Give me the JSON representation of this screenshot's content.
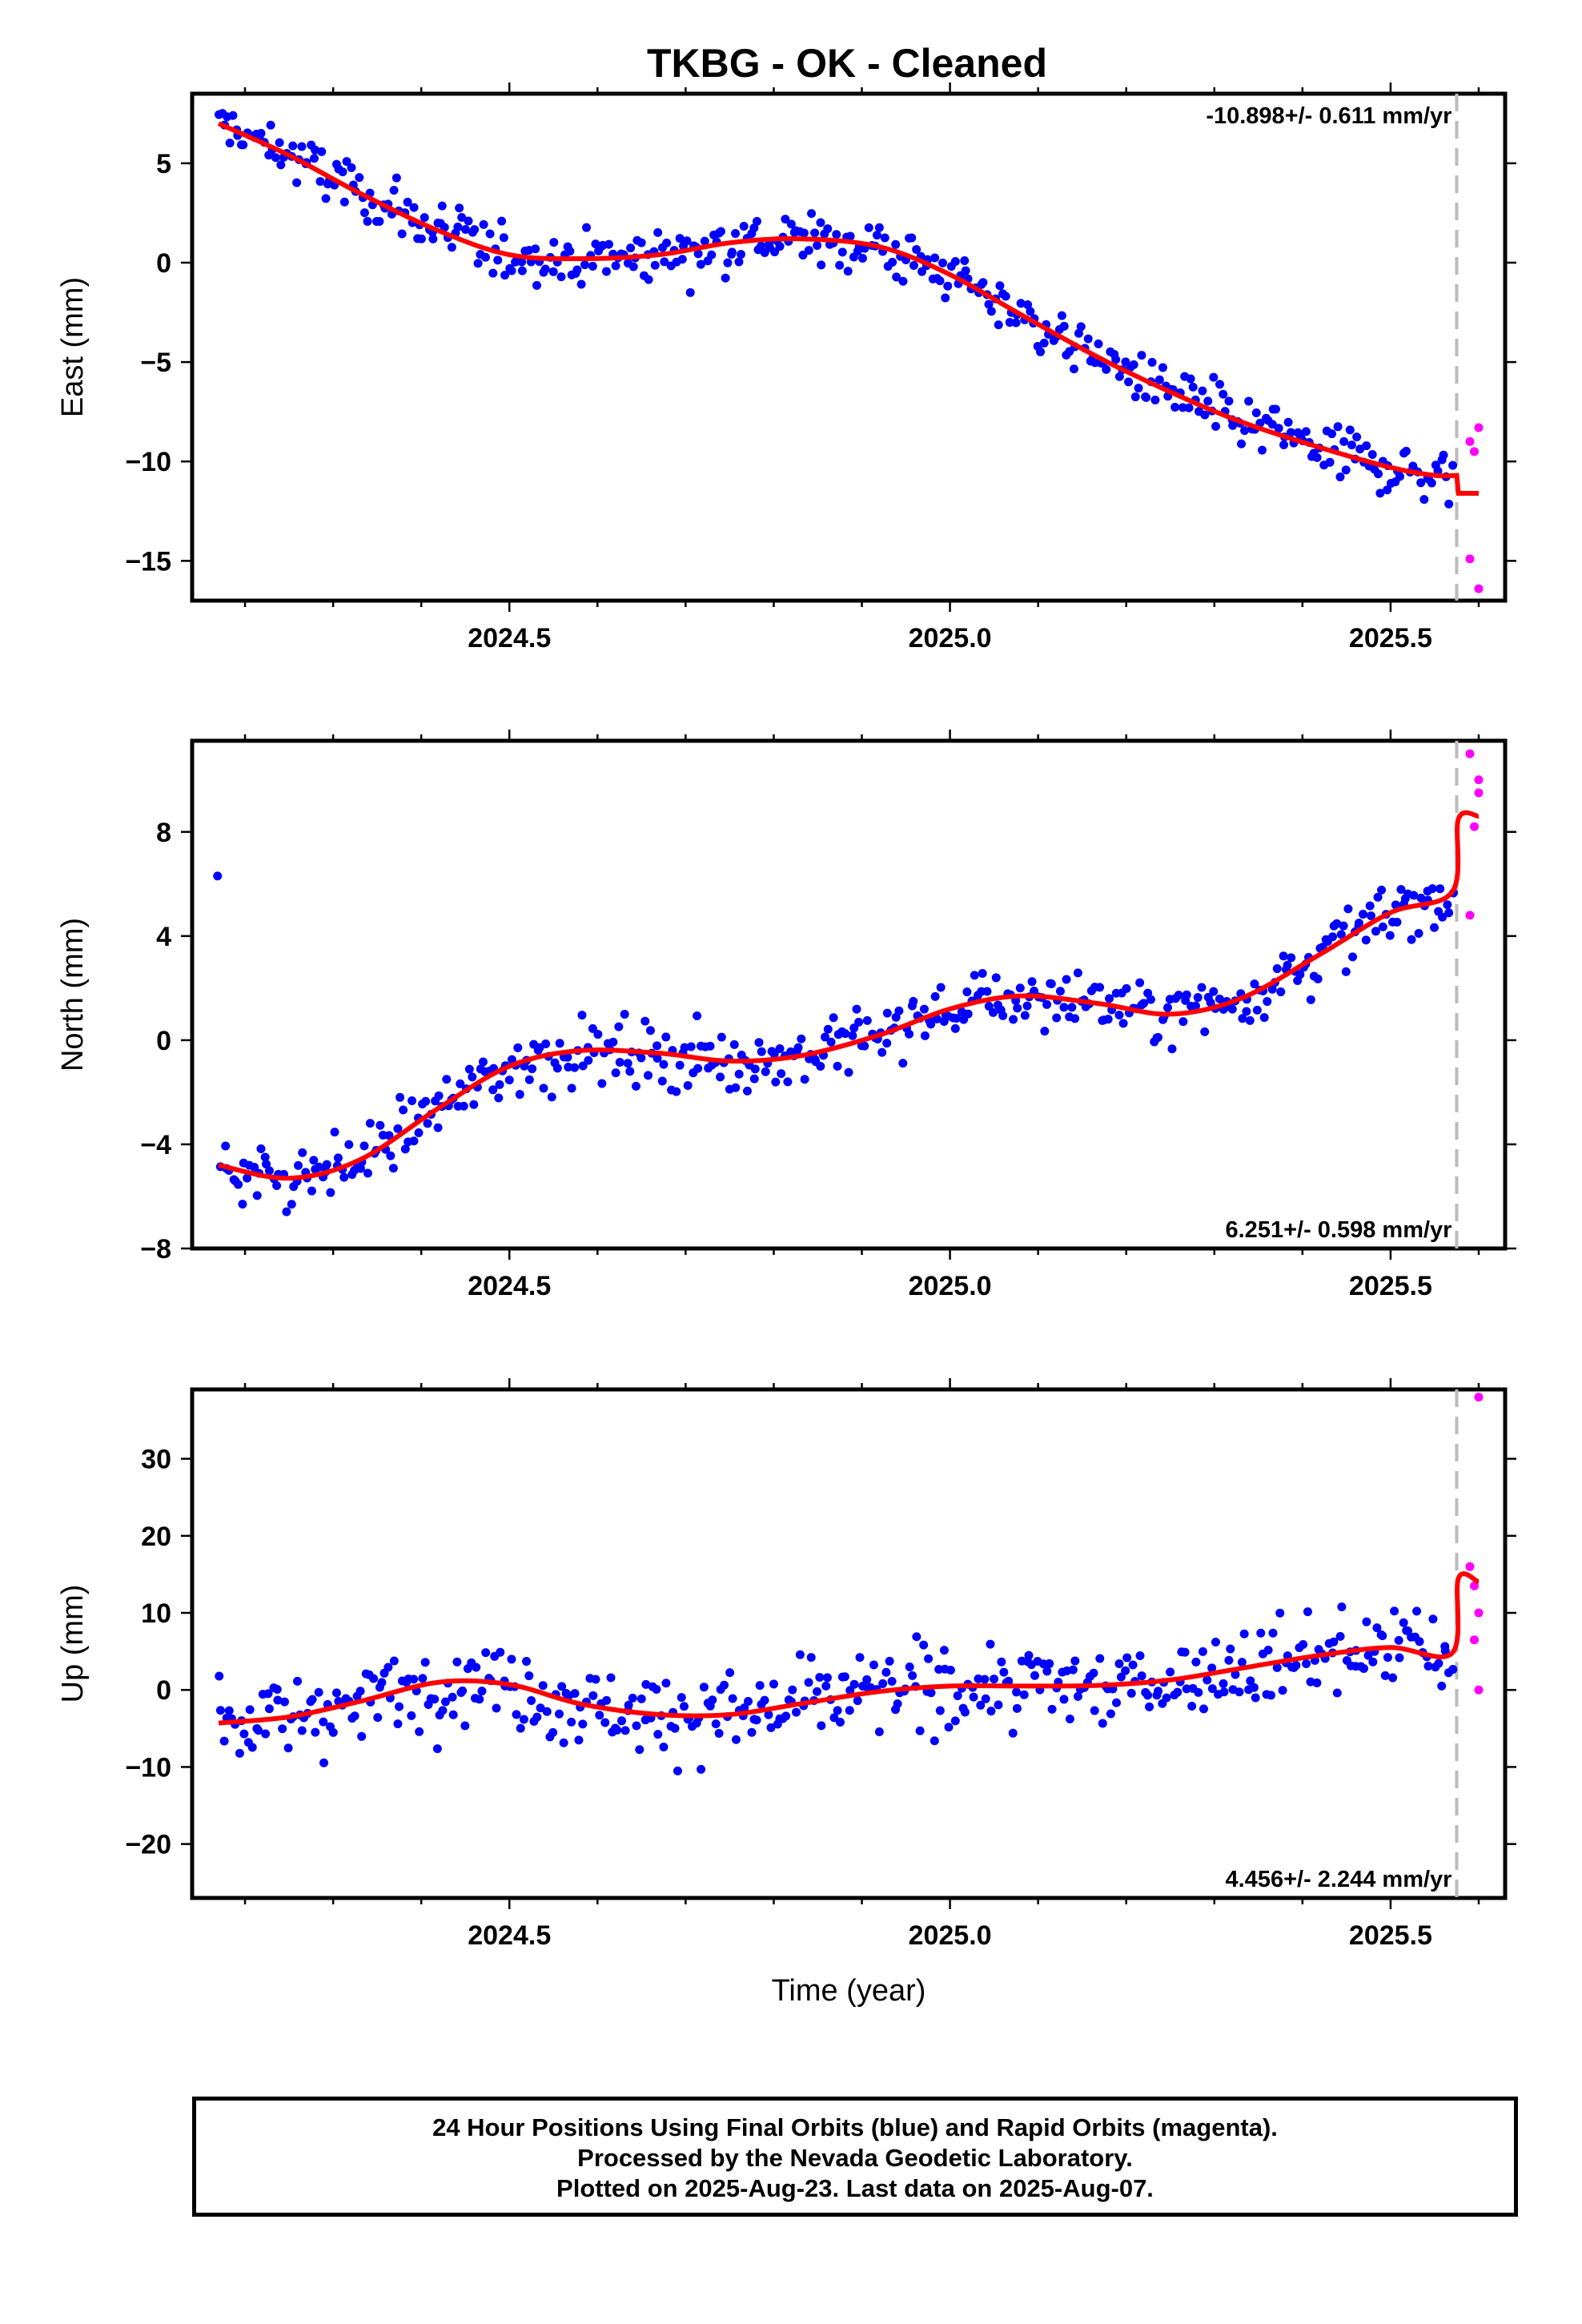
{
  "title": "TKBG  - OK - Cleaned",
  "colors": {
    "final_orbits": "#0000ff",
    "rapid_orbits": "#ff00ff",
    "model": "#ff0000",
    "marker_line": "#bbbbbb"
  },
  "footer": {
    "line1": "24 Hour Positions Using Final Orbits (blue) and Rapid Orbits (magenta).",
    "line2": "Processed by the Nevada Geodetic Laboratory.",
    "line3": "Plotted on 2025-Aug-23. Last data on 2025-Aug-07."
  },
  "chart_data": [
    {
      "type": "scatter",
      "title": "TKBG  - OK - Cleaned",
      "ylabel": "East (mm)",
      "xlabel": "",
      "xlim": [
        2024.14,
        2025.63
      ],
      "ylim": [
        -17,
        8.5
      ],
      "xticks": [
        2024.5,
        2025.0,
        2025.5
      ],
      "xtick_labels": [
        "2024.5",
        "2025.0",
        "2025.5"
      ],
      "yticks": [
        5,
        0,
        -5,
        -10,
        -15
      ],
      "ytick_labels": [
        "5",
        "0",
        "−5",
        "−10",
        "−15"
      ],
      "rate_label": "-10.898+/- 0.611 mm/yr",
      "rate_position": "top-right",
      "event_line_x": 2025.575,
      "model": {
        "x": [
          2024.17,
          2024.25,
          2024.33,
          2024.42,
          2024.5,
          2024.58,
          2024.67,
          2024.75,
          2024.83,
          2024.92,
          2025.0,
          2025.08,
          2025.17,
          2025.25,
          2025.33,
          2025.42,
          2025.5,
          2025.55,
          2025.575,
          2025.577,
          2025.6
        ],
        "y": [
          7.0,
          5.4,
          3.5,
          1.6,
          0.4,
          0.2,
          0.4,
          1.0,
          1.2,
          0.8,
          -0.6,
          -2.6,
          -4.8,
          -6.5,
          -8.0,
          -9.3,
          -10.3,
          -10.7,
          -10.7,
          -11.6,
          -11.6
        ]
      },
      "series": [
        {
          "name": "Final Orbits",
          "color": "#0000ff",
          "trend_points": [
            [
              2024.17,
              7.0
            ],
            [
              2024.25,
              5.4
            ],
            [
              2024.33,
              3.5
            ],
            [
              2024.42,
              1.6
            ],
            [
              2024.5,
              0.4
            ],
            [
              2024.58,
              0.2
            ],
            [
              2024.67,
              0.4
            ],
            [
              2024.75,
              1.0
            ],
            [
              2024.83,
              1.2
            ],
            [
              2024.92,
              0.8
            ],
            [
              2025.0,
              -0.6
            ],
            [
              2025.08,
              -2.6
            ],
            [
              2025.17,
              -4.8
            ],
            [
              2025.25,
              -6.5
            ],
            [
              2025.33,
              -8.0
            ],
            [
              2025.42,
              -9.3
            ],
            [
              2025.5,
              -10.3
            ],
            [
              2025.57,
              -10.8
            ]
          ],
          "scatter_sd": 1.0
        },
        {
          "name": "Rapid Orbits",
          "color": "#ff00ff",
          "x": [
            2025.59,
            2025.595,
            2025.6,
            2025.59,
            2025.6
          ],
          "y": [
            -9.0,
            -9.5,
            -8.3,
            -14.9,
            -16.4
          ]
        }
      ]
    },
    {
      "type": "scatter",
      "ylabel": "North (mm)",
      "xlabel": "",
      "xlim": [
        2024.14,
        2025.63
      ],
      "ylim": [
        -8,
        11.5
      ],
      "xticks": [
        2024.5,
        2025.0,
        2025.5
      ],
      "xtick_labels": [
        "2024.5",
        "2025.0",
        "2025.5"
      ],
      "yticks": [
        8,
        4,
        0,
        -4,
        -8
      ],
      "ytick_labels": [
        "8",
        "4",
        "0",
        "−4",
        "−8"
      ],
      "rate_label": "6.251+/- 0.598 mm/yr",
      "rate_position": "bottom-right",
      "event_line_x": 2025.575,
      "model": {
        "x": [
          2024.17,
          2024.25,
          2024.33,
          2024.42,
          2024.5,
          2024.58,
          2024.67,
          2024.75,
          2024.83,
          2024.92,
          2025.0,
          2025.08,
          2025.17,
          2025.25,
          2025.33,
          2025.42,
          2025.5,
          2025.57,
          2025.577,
          2025.6
        ],
        "y": [
          -4.8,
          -5.3,
          -4.6,
          -2.6,
          -1.0,
          -0.4,
          -0.5,
          -0.8,
          -0.6,
          0.2,
          1.2,
          1.7,
          1.4,
          1.0,
          1.6,
          3.3,
          4.9,
          5.7,
          8.5,
          8.6
        ]
      },
      "series": [
        {
          "name": "Final Orbits",
          "color": "#0000ff",
          "trend_points": [
            [
              2024.17,
              -4.8
            ],
            [
              2024.25,
              -5.3
            ],
            [
              2024.33,
              -4.6
            ],
            [
              2024.42,
              -2.6
            ],
            [
              2024.5,
              -1.0
            ],
            [
              2024.58,
              -0.4
            ],
            [
              2024.67,
              -0.5
            ],
            [
              2024.75,
              -0.8
            ],
            [
              2024.83,
              -0.6
            ],
            [
              2024.92,
              0.2
            ],
            [
              2025.0,
              1.2
            ],
            [
              2025.08,
              1.7
            ],
            [
              2025.17,
              1.4
            ],
            [
              2025.25,
              1.0
            ],
            [
              2025.33,
              1.6
            ],
            [
              2025.42,
              3.3
            ],
            [
              2025.5,
              4.9
            ],
            [
              2025.57,
              5.7
            ]
          ],
          "scatter_sd": 0.85
        },
        {
          "name": "Rapid Orbits",
          "color": "#ff00ff",
          "x": [
            2025.59,
            2025.6,
            2025.6,
            2025.595,
            2025.59
          ],
          "y": [
            11.0,
            10.0,
            9.5,
            8.2,
            4.8
          ]
        }
      ]
    },
    {
      "type": "scatter",
      "ylabel": "Up (mm)",
      "xlabel": "Time (year)",
      "xlim": [
        2024.14,
        2025.63
      ],
      "ylim": [
        -27,
        39
      ],
      "xticks": [
        2024.5,
        2025.0,
        2025.5
      ],
      "xtick_labels": [
        "2024.5",
        "2025.0",
        "2025.5"
      ],
      "yticks": [
        30,
        20,
        10,
        0,
        -10,
        -20
      ],
      "ytick_labels": [
        "30",
        "20",
        "10",
        "0",
        "−10",
        "−20"
      ],
      "rate_label": "4.456+/- 2.244 mm/yr",
      "rate_position": "bottom-right",
      "event_line_x": 2025.575,
      "model": {
        "x": [
          2024.17,
          2024.25,
          2024.33,
          2024.42,
          2024.5,
          2024.58,
          2024.67,
          2024.75,
          2024.83,
          2024.92,
          2025.0,
          2025.08,
          2025.17,
          2025.25,
          2025.33,
          2025.42,
          2025.5,
          2025.57,
          2025.577,
          2025.6
        ],
        "y": [
          -4.3,
          -3.5,
          -1.5,
          1.0,
          0.7,
          -1.8,
          -3.2,
          -3.2,
          -1.8,
          -0.2,
          0.5,
          0.5,
          0.6,
          1.3,
          2.8,
          4.5,
          5.5,
          4.8,
          14.5,
          14.0
        ]
      },
      "series": [
        {
          "name": "Final Orbits",
          "color": "#0000ff",
          "trend_points": [
            [
              2024.17,
              -4.3
            ],
            [
              2024.25,
              -3.5
            ],
            [
              2024.33,
              -1.5
            ],
            [
              2024.42,
              1.0
            ],
            [
              2024.5,
              0.7
            ],
            [
              2024.58,
              -1.8
            ],
            [
              2024.67,
              -3.2
            ],
            [
              2024.75,
              -3.2
            ],
            [
              2024.83,
              -1.8
            ],
            [
              2024.92,
              -0.2
            ],
            [
              2025.0,
              0.5
            ],
            [
              2025.08,
              0.5
            ],
            [
              2025.17,
              0.6
            ],
            [
              2025.25,
              1.3
            ],
            [
              2025.33,
              2.8
            ],
            [
              2025.42,
              4.5
            ],
            [
              2025.5,
              5.5
            ],
            [
              2025.57,
              4.8
            ]
          ],
          "scatter_sd": 3.8
        },
        {
          "name": "Rapid Orbits",
          "color": "#ff00ff",
          "x": [
            2025.6,
            2025.59,
            2025.595,
            2025.6,
            2025.595,
            2025.6
          ],
          "y": [
            38.0,
            16.0,
            13.5,
            10.0,
            6.5,
            0.0
          ]
        }
      ]
    }
  ]
}
